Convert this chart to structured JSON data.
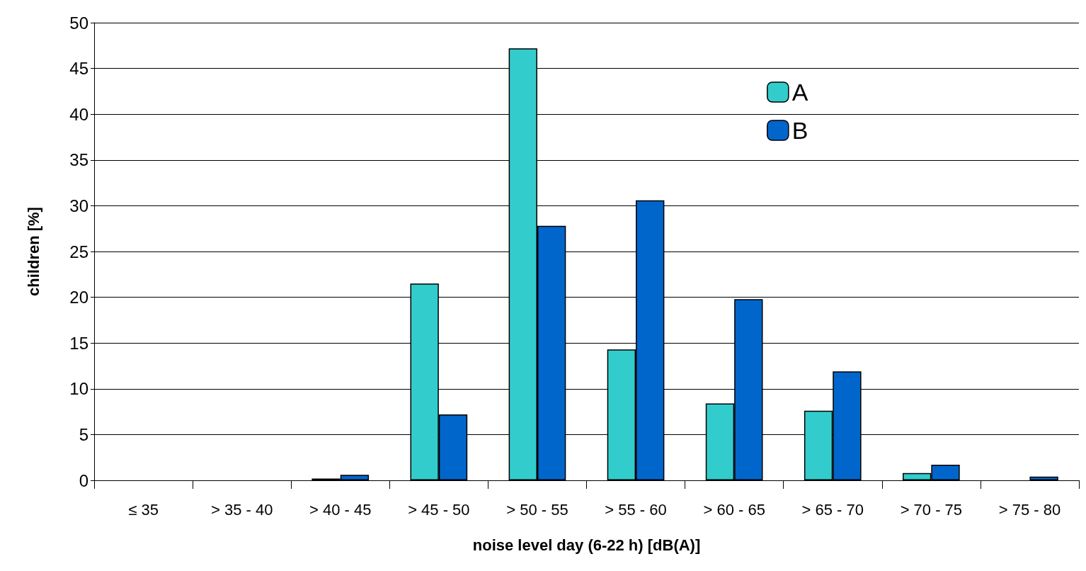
{
  "chart_data": {
    "type": "bar",
    "xlabel": "noise level day (6-22 h) [dB(A)]",
    "ylabel": "children [%]",
    "categories": [
      "≤ 35",
      "> 35 - 40",
      "> 40 - 45",
      "> 45 - 50",
      "> 50 - 55",
      "> 55 - 60",
      "> 60 - 65",
      "> 65 - 70",
      "> 70 - 75",
      "> 75 - 80"
    ],
    "series": [
      {
        "name": "A",
        "color": "#33cccc",
        "values": [
          0,
          0,
          0.2,
          21.5,
          47.2,
          14.3,
          8.4,
          7.6,
          0.8,
          0
        ]
      },
      {
        "name": "B",
        "color": "#0066cc",
        "values": [
          0,
          0,
          0.6,
          7.2,
          27.8,
          30.6,
          19.8,
          11.9,
          1.7,
          0.4
        ]
      }
    ],
    "ylim": [
      0,
      50
    ],
    "yticks": [
      0,
      5,
      10,
      15,
      20,
      25,
      30,
      35,
      40,
      45,
      50
    ],
    "grid": "y",
    "legend": "top right"
  }
}
